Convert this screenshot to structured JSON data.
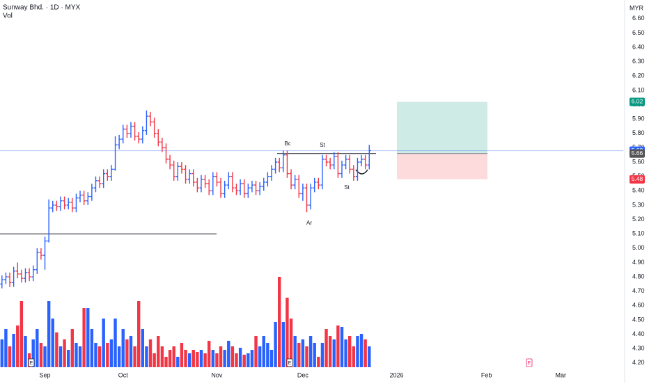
{
  "chart_data": {
    "type": "ohlc",
    "title": "Sunway Bhd. · 1D · MYX",
    "subtitle": "Vol",
    "currency": "MYR",
    "up_color": "#2962ff",
    "down_color": "#f23645",
    "open": [
      4.75,
      4.78,
      4.8,
      4.76,
      4.84,
      4.82,
      4.79,
      4.83,
      4.8,
      4.85,
      4.97,
      4.95,
      5.05,
      5.28,
      5.3,
      5.29,
      5.33,
      5.3,
      5.32,
      5.28,
      5.35,
      5.37,
      5.33,
      5.36,
      5.42,
      5.47,
      5.45,
      5.52,
      5.5,
      5.55,
      5.72,
      5.76,
      5.83,
      5.8,
      5.85,
      5.78,
      5.76,
      5.82,
      5.92,
      5.88,
      5.8,
      5.74,
      5.7,
      5.62,
      5.58,
      5.5,
      5.57,
      5.55,
      5.48,
      5.52,
      5.46,
      5.42,
      5.48,
      5.45,
      5.4,
      5.5,
      5.46,
      5.38,
      5.44,
      5.5,
      5.42,
      5.4,
      5.45,
      5.38,
      5.42,
      5.44,
      5.4,
      5.43,
      5.46,
      5.5,
      5.55,
      5.6,
      5.56,
      5.65,
      5.52,
      5.44,
      5.48,
      5.38,
      5.42,
      5.3,
      5.42,
      5.46,
      5.44,
      5.62,
      5.6,
      5.58,
      5.64,
      5.52,
      5.58,
      5.62,
      5.55,
      5.5,
      5.6,
      5.62,
      5.58
    ],
    "high": [
      4.81,
      4.83,
      4.83,
      4.87,
      4.9,
      4.85,
      4.86,
      4.86,
      4.88,
      5.0,
      5.0,
      5.08,
      5.34,
      5.33,
      5.33,
      5.36,
      5.36,
      5.35,
      5.35,
      5.38,
      5.4,
      5.4,
      5.39,
      5.45,
      5.5,
      5.5,
      5.55,
      5.55,
      5.58,
      5.78,
      5.79,
      5.86,
      5.86,
      5.88,
      5.88,
      5.81,
      5.85,
      5.96,
      5.95,
      5.91,
      5.83,
      5.77,
      5.73,
      5.65,
      5.61,
      5.6,
      5.6,
      5.58,
      5.55,
      5.55,
      5.49,
      5.51,
      5.51,
      5.48,
      5.53,
      5.53,
      5.49,
      5.47,
      5.53,
      5.53,
      5.45,
      5.48,
      5.48,
      5.45,
      5.47,
      5.47,
      5.46,
      5.49,
      5.53,
      5.58,
      5.63,
      5.63,
      5.68,
      5.68,
      5.55,
      5.51,
      5.51,
      5.45,
      5.45,
      5.45,
      5.49,
      5.49,
      5.65,
      5.65,
      5.63,
      5.67,
      5.67,
      5.61,
      5.65,
      5.65,
      5.58,
      5.63,
      5.65,
      5.65,
      5.72
    ],
    "low": [
      4.72,
      4.75,
      4.73,
      4.73,
      4.79,
      4.76,
      4.76,
      4.77,
      4.77,
      4.82,
      4.92,
      4.85,
      5.04,
      5.25,
      5.26,
      5.26,
      5.27,
      5.27,
      5.25,
      5.25,
      5.32,
      5.3,
      5.3,
      5.33,
      5.39,
      5.42,
      5.42,
      5.47,
      5.47,
      5.54,
      5.69,
      5.73,
      5.77,
      5.77,
      5.75,
      5.73,
      5.73,
      5.79,
      5.85,
      5.77,
      5.71,
      5.67,
      5.59,
      5.55,
      5.47,
      5.47,
      5.52,
      5.45,
      5.45,
      5.43,
      5.39,
      5.39,
      5.42,
      5.37,
      5.37,
      5.43,
      5.35,
      5.35,
      5.41,
      5.39,
      5.37,
      5.37,
      5.35,
      5.35,
      5.39,
      5.37,
      5.37,
      5.4,
      5.43,
      5.47,
      5.52,
      5.53,
      5.53,
      5.49,
      5.41,
      5.41,
      5.35,
      5.33,
      5.25,
      5.27,
      5.39,
      5.41,
      5.41,
      5.57,
      5.55,
      5.55,
      5.49,
      5.49,
      5.55,
      5.52,
      5.47,
      5.47,
      5.57,
      5.55,
      5.55
    ],
    "close": [
      4.78,
      4.8,
      4.76,
      4.84,
      4.82,
      4.79,
      4.83,
      4.8,
      4.85,
      4.97,
      4.95,
      5.05,
      5.28,
      5.3,
      5.29,
      5.33,
      5.3,
      5.32,
      5.28,
      5.35,
      5.37,
      5.33,
      5.36,
      5.42,
      5.47,
      5.45,
      5.52,
      5.5,
      5.55,
      5.72,
      5.76,
      5.83,
      5.8,
      5.85,
      5.78,
      5.76,
      5.82,
      5.92,
      5.88,
      5.8,
      5.74,
      5.7,
      5.62,
      5.58,
      5.5,
      5.57,
      5.55,
      5.48,
      5.52,
      5.46,
      5.42,
      5.48,
      5.45,
      5.4,
      5.5,
      5.46,
      5.38,
      5.44,
      5.5,
      5.42,
      5.4,
      5.45,
      5.38,
      5.42,
      5.44,
      5.4,
      5.43,
      5.46,
      5.5,
      5.55,
      5.6,
      5.56,
      5.65,
      5.52,
      5.44,
      5.48,
      5.38,
      5.42,
      5.3,
      5.42,
      5.46,
      5.44,
      5.62,
      5.6,
      5.58,
      5.64,
      5.52,
      5.58,
      5.62,
      5.55,
      5.5,
      5.6,
      5.62,
      5.58,
      5.68
    ],
    "volume": [
      40,
      55,
      30,
      48,
      60,
      95,
      45,
      20,
      40,
      55,
      35,
      30,
      95,
      70,
      50,
      30,
      40,
      25,
      55,
      35,
      30,
      85,
      85,
      55,
      35,
      30,
      70,
      35,
      40,
      70,
      30,
      55,
      40,
      45,
      30,
      95,
      55,
      30,
      40,
      20,
      45,
      30,
      15,
      25,
      30,
      15,
      35,
      25,
      20,
      25,
      22,
      25,
      20,
      38,
      25,
      20,
      30,
      25,
      38,
      30,
      20,
      28,
      18,
      20,
      25,
      45,
      30,
      45,
      35,
      25,
      65,
      130,
      65,
      100,
      70,
      45,
      35,
      40,
      30,
      45,
      35,
      15,
      35,
      55,
      45,
      40,
      60,
      58,
      40,
      45,
      30,
      45,
      48,
      40,
      30
    ],
    "vlim": [
      0,
      140
    ],
    "xlim": [
      -0.5,
      159
    ],
    "xticks": [
      {
        "value": 11,
        "label": "Sep"
      },
      {
        "value": 31,
        "label": "Oct"
      },
      {
        "value": 55,
        "label": "Nov"
      },
      {
        "value": 77,
        "label": "Dec"
      },
      {
        "value": 101,
        "label": "2026"
      },
      {
        "value": 124,
        "label": "Feb"
      },
      {
        "value": 143,
        "label": "Mar"
      }
    ],
    "ylim": [
      4.17,
      6.73
    ],
    "yticks": [
      {
        "value": 4.2,
        "label": "4.20"
      },
      {
        "value": 4.3,
        "label": "4.30"
      },
      {
        "value": 4.4,
        "label": "4.40"
      },
      {
        "value": 4.5,
        "label": "4.50"
      },
      {
        "value": 4.6,
        "label": "4.60"
      },
      {
        "value": 4.7,
        "label": "4.70"
      },
      {
        "value": 4.8,
        "label": "4.80"
      },
      {
        "value": 4.9,
        "label": "4.90"
      },
      {
        "value": 5.0,
        "label": "5.00"
      },
      {
        "value": 5.1,
        "label": "5.10"
      },
      {
        "value": 5.2,
        "label": "5.20"
      },
      {
        "value": 5.3,
        "label": "5.30"
      },
      {
        "value": 5.4,
        "label": "5.40"
      },
      {
        "value": 5.5,
        "label": "5.50"
      },
      {
        "value": 5.6,
        "label": "5.60"
      },
      {
        "value": 5.7,
        "label": "5.70"
      },
      {
        "value": 5.8,
        "label": "5.80"
      },
      {
        "value": 5.9,
        "label": "5.90"
      },
      {
        "value": 6.0,
        "label": "6.00"
      },
      {
        "value": 6.1,
        "label": "6.10"
      },
      {
        "value": 6.2,
        "label": "6.20"
      },
      {
        "value": 6.3,
        "label": "6.30"
      },
      {
        "value": 6.4,
        "label": "6.40"
      },
      {
        "value": 6.5,
        "label": "6.50"
      },
      {
        "value": 6.6,
        "label": "6.60"
      }
    ],
    "price_markers": [
      {
        "value": 6.02,
        "color": "#089981"
      },
      {
        "value": 5.68,
        "color": "#2962ff"
      },
      {
        "value": 5.66,
        "color": "#555555"
      },
      {
        "value": 5.48,
        "color": "#f23645"
      }
    ],
    "level_lines": [
      5.1,
      5.66
    ],
    "annotations": [
      "Bc",
      "St",
      "Ar",
      "St"
    ],
    "events": [
      "E",
      "E",
      "E"
    ]
  }
}
